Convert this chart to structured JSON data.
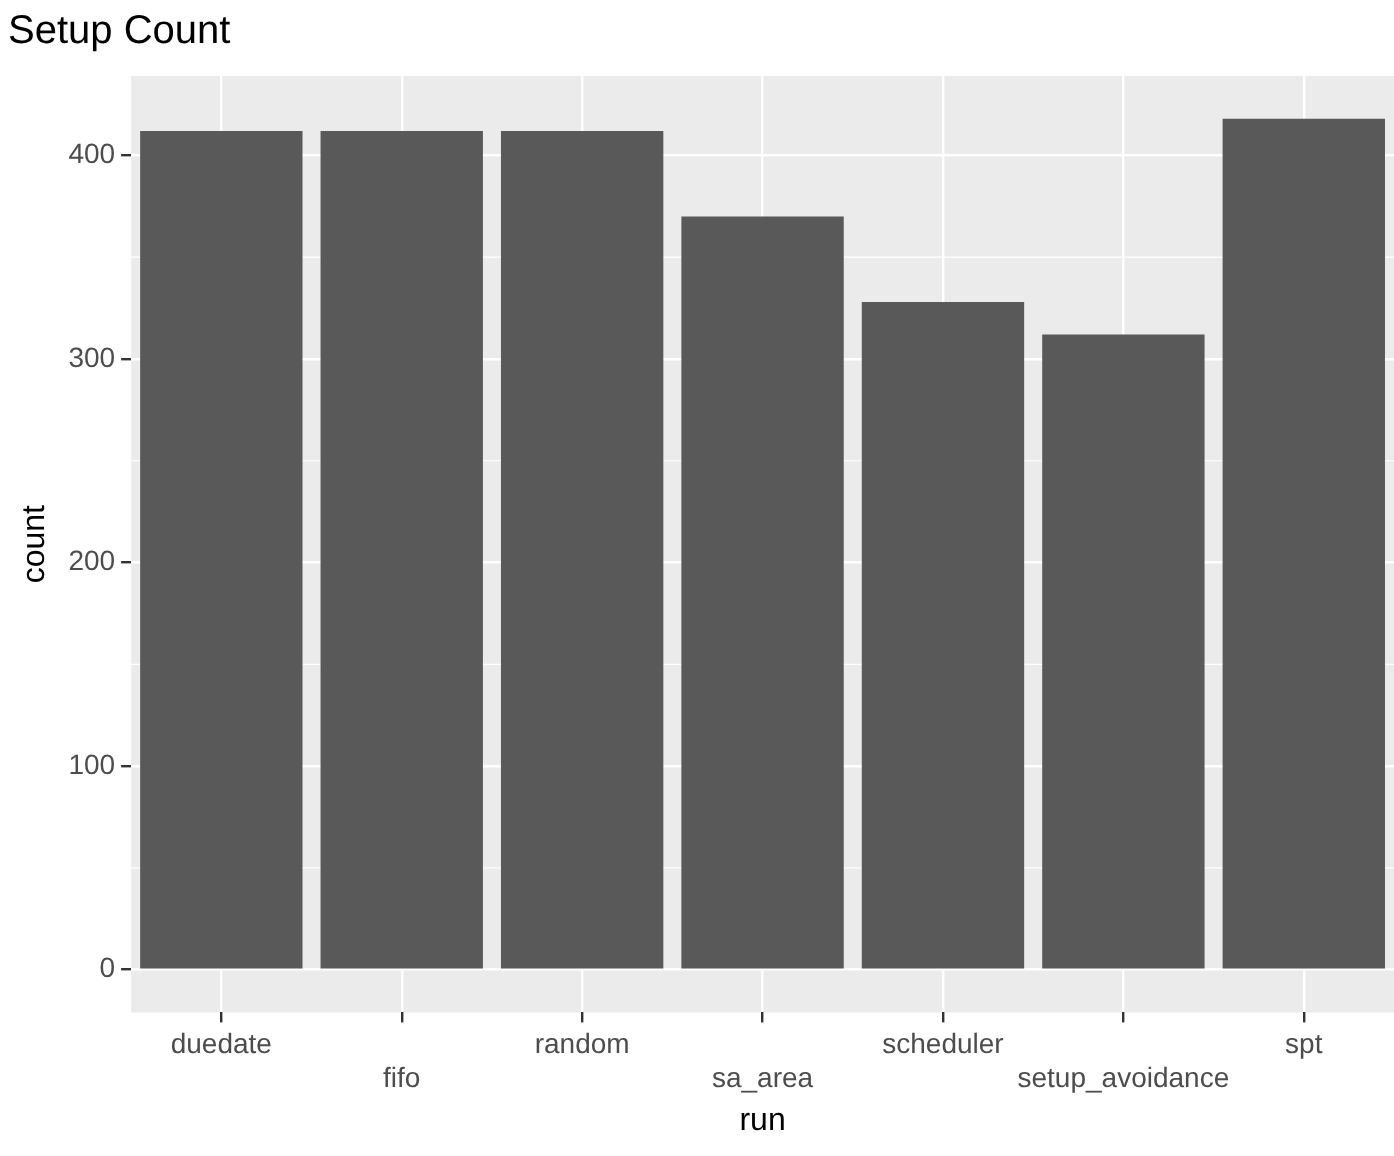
{
  "chart_data": {
    "type": "bar",
    "title": "Setup Count",
    "xlabel": "run",
    "ylabel": "count",
    "categories": [
      "duedate",
      "fifo",
      "random",
      "sa_area",
      "scheduler",
      "setup_avoidance",
      "spt"
    ],
    "values": [
      412,
      412,
      412,
      370,
      328,
      312,
      418
    ],
    "color": "#595959",
    "ylim": [
      -21,
      439
    ],
    "yticks": [
      0,
      100,
      200,
      300,
      400
    ],
    "grid": true,
    "legend": false
  }
}
